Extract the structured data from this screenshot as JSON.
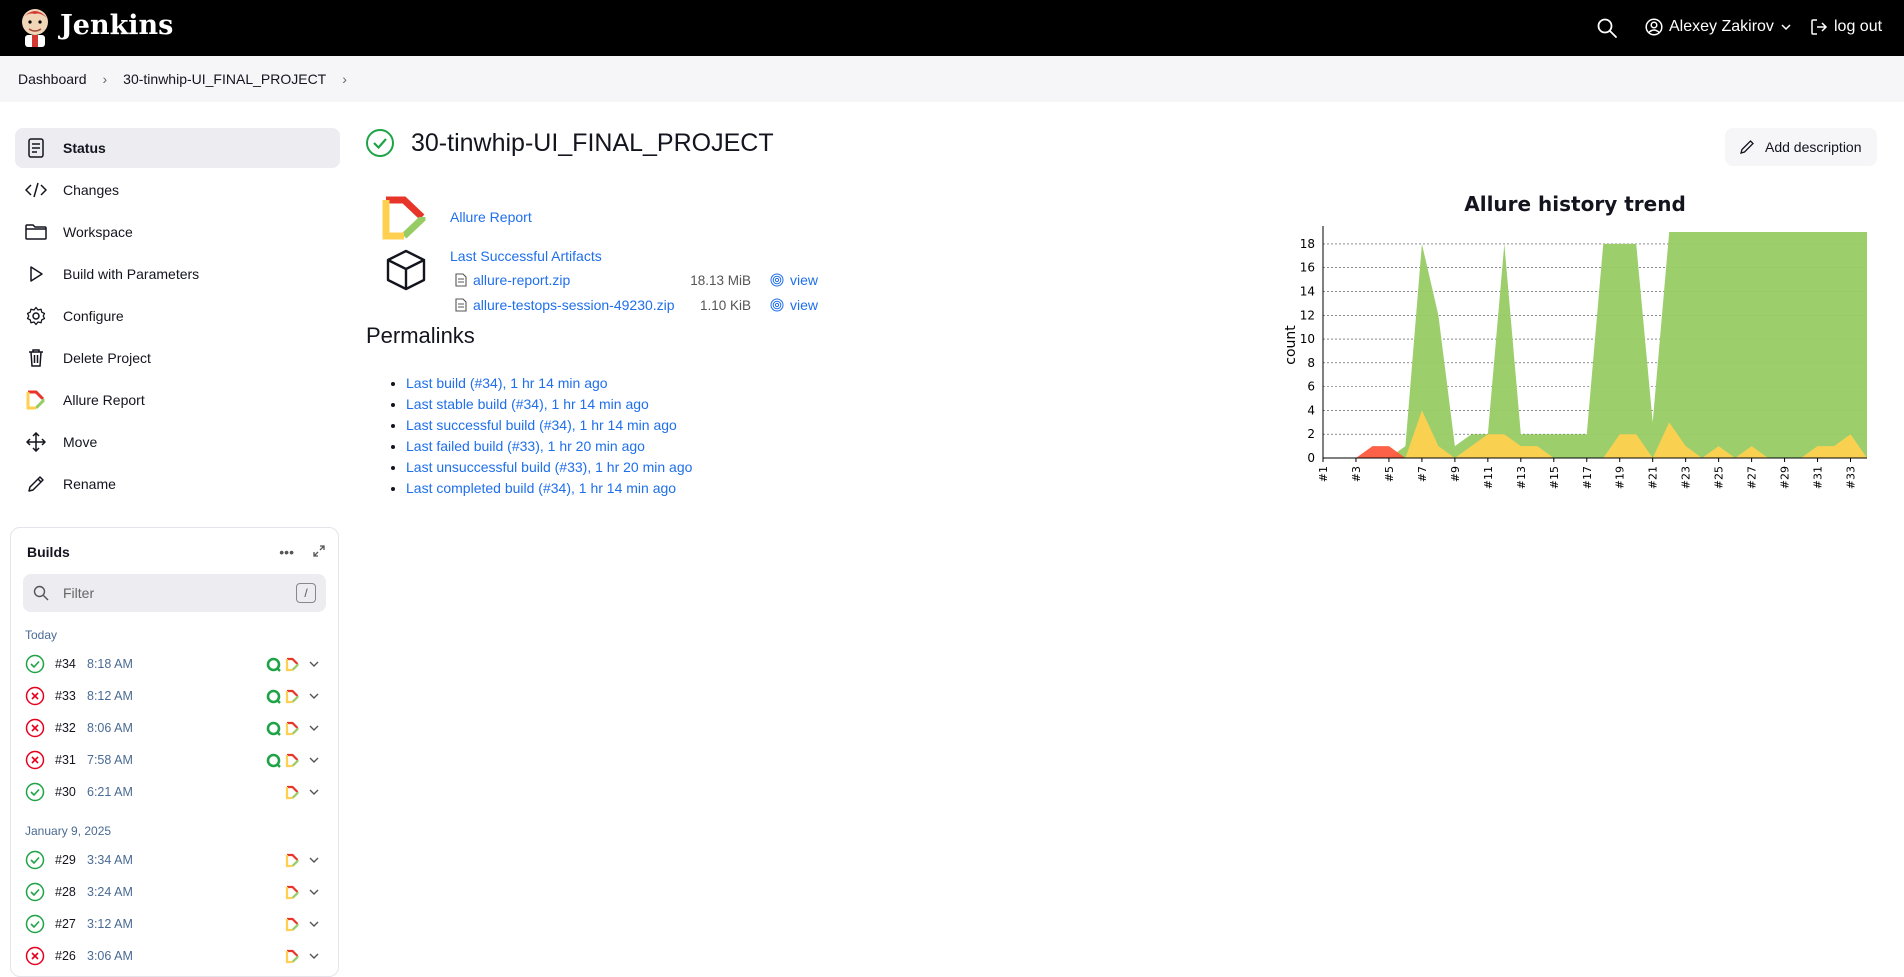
{
  "header": {
    "brand": "Jenkins",
    "user_name": "Alexey Zakirov",
    "logout_label": "log out"
  },
  "breadcrumb": {
    "items": [
      "Dashboard",
      "30-tinwhip-UI_FINAL_PROJECT"
    ]
  },
  "sidebar": {
    "items": [
      {
        "label": "Status",
        "icon": "status-icon"
      },
      {
        "label": "Changes",
        "icon": "code-icon"
      },
      {
        "label": "Workspace",
        "icon": "folder-icon"
      },
      {
        "label": "Build with Parameters",
        "icon": "play-icon"
      },
      {
        "label": "Configure",
        "icon": "gear-icon"
      },
      {
        "label": "Delete Project",
        "icon": "trash-icon"
      },
      {
        "label": "Allure Report",
        "icon": "allure-icon"
      },
      {
        "label": "Move",
        "icon": "move-icon"
      },
      {
        "label": "Rename",
        "icon": "pencil-icon"
      }
    ]
  },
  "builds": {
    "title": "Builds",
    "filter_placeholder": "Filter",
    "filter_shortcut": "/",
    "groups": [
      {
        "label": "Today",
        "rows": [
          {
            "number": "#34",
            "time": "8:18 AM",
            "status": "success"
          },
          {
            "number": "#33",
            "time": "8:12 AM",
            "status": "failed"
          },
          {
            "number": "#32",
            "time": "8:06 AM",
            "status": "failed"
          },
          {
            "number": "#31",
            "time": "7:58 AM",
            "status": "failed"
          },
          {
            "number": "#30",
            "time": "6:21 AM",
            "status": "success"
          }
        ]
      },
      {
        "label": "January 9, 2025",
        "rows": [
          {
            "number": "#29",
            "time": "3:34 AM",
            "status": "success"
          },
          {
            "number": "#28",
            "time": "3:24 AM",
            "status": "success"
          },
          {
            "number": "#27",
            "time": "3:12 AM",
            "status": "success"
          },
          {
            "number": "#26",
            "time": "3:06 AM",
            "status": "failed"
          }
        ]
      }
    ]
  },
  "main": {
    "title": "30-tinwhip-UI_FINAL_PROJECT",
    "add_description": "Add description",
    "allure_report_link": "Allure Report",
    "artifacts_link": "Last Successful Artifacts",
    "artifacts": [
      {
        "name": "allure-report.zip",
        "size": "18.13 MiB",
        "view": "view"
      },
      {
        "name": "allure-testops-session-49230.zip",
        "size": "1.10 KiB",
        "view": "view"
      }
    ],
    "permalinks_heading": "Permalinks",
    "permalinks": [
      "Last build (#34), 1 hr 14 min ago",
      "Last stable build (#34), 1 hr 14 min ago",
      "Last successful build (#34), 1 hr 14 min ago",
      "Last failed build (#33), 1 hr 20 min ago",
      "Last unsuccessful build (#33), 1 hr 20 min ago",
      "Last completed build (#34), 1 hr 14 min ago"
    ]
  },
  "chart_data": {
    "type": "area",
    "title": "Allure history trend",
    "ylabel": "count",
    "xlabel": "",
    "ylim": [
      0,
      19
    ],
    "yticks": [
      0,
      2,
      4,
      6,
      8,
      10,
      12,
      14,
      16,
      18
    ],
    "x": [
      "#1",
      "#2",
      "#3",
      "#4",
      "#5",
      "#6",
      "#7",
      "#8",
      "#9",
      "#10",
      "#11",
      "#12",
      "#13",
      "#14",
      "#15",
      "#16",
      "#17",
      "#18",
      "#19",
      "#20",
      "#21",
      "#22",
      "#23",
      "#24",
      "#25",
      "#26",
      "#27",
      "#28",
      "#29",
      "#30",
      "#31",
      "#32",
      "#33",
      "#34"
    ],
    "x_tick_labels": [
      "#1",
      "#3",
      "#5",
      "#7",
      "#9",
      "#11",
      "#13",
      "#15",
      "#17",
      "#19",
      "#21",
      "#23",
      "#25",
      "#27",
      "#29",
      "#31",
      "#33"
    ],
    "series": [
      {
        "color": "#97cc64",
        "values": [
          0,
          0,
          0,
          0,
          0,
          1,
          18,
          12,
          1,
          2,
          2,
          18,
          2,
          2,
          2,
          2,
          2,
          18,
          18,
          18,
          3,
          19,
          19,
          19,
          19,
          19,
          19,
          19,
          19,
          19,
          19,
          19,
          19,
          19
        ]
      },
      {
        "color": "#ffd050",
        "values": [
          0,
          0,
          0,
          0,
          0,
          0,
          4,
          1,
          0,
          1,
          2,
          2,
          1,
          1,
          0,
          0,
          0,
          0,
          2,
          2,
          0,
          3,
          1,
          0,
          1,
          0,
          1,
          0,
          0,
          0,
          1,
          1,
          2,
          0
        ]
      },
      {
        "color": "#fd5a3e",
        "values": [
          0,
          0,
          0,
          1,
          1,
          0,
          0,
          0,
          0,
          0,
          0,
          0,
          0,
          0,
          0,
          0,
          0,
          0,
          0,
          0,
          0,
          0,
          0,
          0,
          0,
          0,
          0,
          0,
          0,
          0,
          0,
          0,
          0,
          0
        ]
      }
    ],
    "grid": true,
    "legend": "none"
  },
  "colors": {
    "success": "#1ea446",
    "failed": "#e6001f",
    "link": "#1f6feb"
  }
}
